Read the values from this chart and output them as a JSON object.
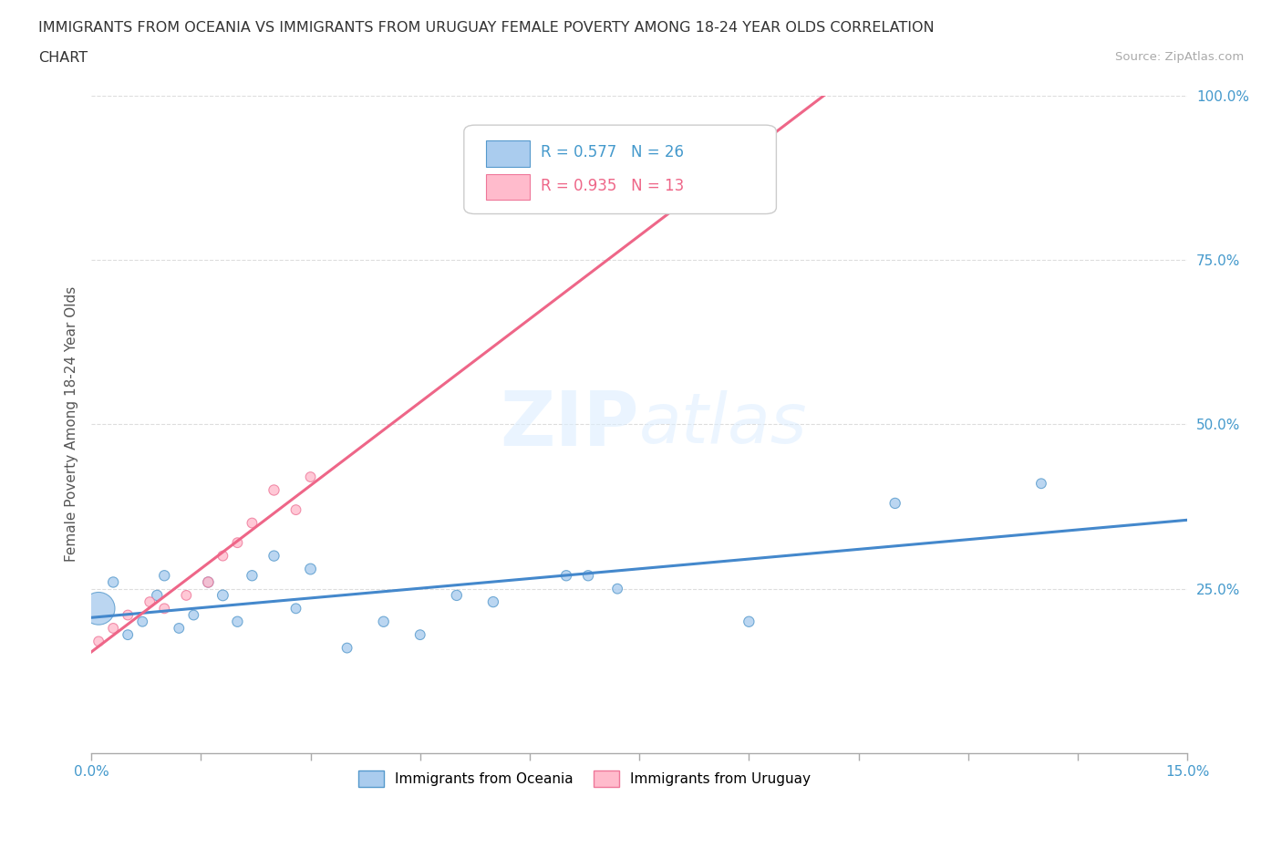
{
  "title_line1": "IMMIGRANTS FROM OCEANIA VS IMMIGRANTS FROM URUGUAY FEMALE POVERTY AMONG 18-24 YEAR OLDS CORRELATION",
  "title_line2": "CHART",
  "source": "Source: ZipAtlas.com",
  "ylabel": "Female Poverty Among 18-24 Year Olds",
  "xlim": [
    0.0,
    0.15
  ],
  "ylim": [
    0.0,
    1.0
  ],
  "yticks": [
    0.25,
    0.5,
    0.75,
    1.0
  ],
  "ytick_labels": [
    "25.0%",
    "50.0%",
    "75.0%",
    "100.0%"
  ],
  "xticks": [
    0.0,
    0.015,
    0.03,
    0.045,
    0.06,
    0.075,
    0.09,
    0.105,
    0.12,
    0.135,
    0.15
  ],
  "xtick_labels": [
    "0.0%",
    "",
    "",
    "",
    "",
    "",
    "",
    "",
    "",
    "",
    "15.0%"
  ],
  "oceania_color": "#aaccee",
  "oceania_edge_color": "#5599cc",
  "uruguay_color": "#ffbbcc",
  "uruguay_edge_color": "#ee7799",
  "line_oceania_color": "#4488cc",
  "line_uruguay_color": "#ee6688",
  "r_oceania": 0.577,
  "n_oceania": 26,
  "r_uruguay": 0.935,
  "n_uruguay": 13,
  "oceania_x": [
    0.001,
    0.003,
    0.005,
    0.007,
    0.009,
    0.01,
    0.012,
    0.014,
    0.016,
    0.018,
    0.02,
    0.022,
    0.025,
    0.028,
    0.03,
    0.035,
    0.04,
    0.045,
    0.05,
    0.055,
    0.065,
    0.068,
    0.072,
    0.09,
    0.11,
    0.13
  ],
  "oceania_y": [
    0.22,
    0.26,
    0.18,
    0.2,
    0.24,
    0.27,
    0.19,
    0.21,
    0.26,
    0.24,
    0.2,
    0.27,
    0.3,
    0.22,
    0.28,
    0.16,
    0.2,
    0.18,
    0.24,
    0.23,
    0.27,
    0.27,
    0.25,
    0.2,
    0.38,
    0.41
  ],
  "oceania_size": [
    550,
    55,
    50,
    50,
    55,
    55,
    50,
    50,
    55,
    60,
    55,
    55,
    55,
    50,
    60,
    50,
    55,
    50,
    55,
    55,
    55,
    55,
    50,
    55,
    55,
    50
  ],
  "uruguay_x": [
    0.001,
    0.003,
    0.005,
    0.008,
    0.01,
    0.013,
    0.016,
    0.018,
    0.02,
    0.022,
    0.025,
    0.028,
    0.03
  ],
  "uruguay_y": [
    0.17,
    0.19,
    0.21,
    0.23,
    0.22,
    0.24,
    0.26,
    0.3,
    0.32,
    0.35,
    0.4,
    0.37,
    0.42
  ],
  "uruguay_size": [
    50,
    50,
    50,
    50,
    50,
    50,
    55,
    50,
    50,
    50,
    55,
    50,
    50
  ],
  "watermark_zip": "ZIP",
  "watermark_atlas": "atlas",
  "background_color": "#ffffff",
  "grid_color": "#dddddd",
  "legend_label_oceania": "Immigrants from Oceania",
  "legend_label_uruguay": "Immigrants from Uruguay"
}
